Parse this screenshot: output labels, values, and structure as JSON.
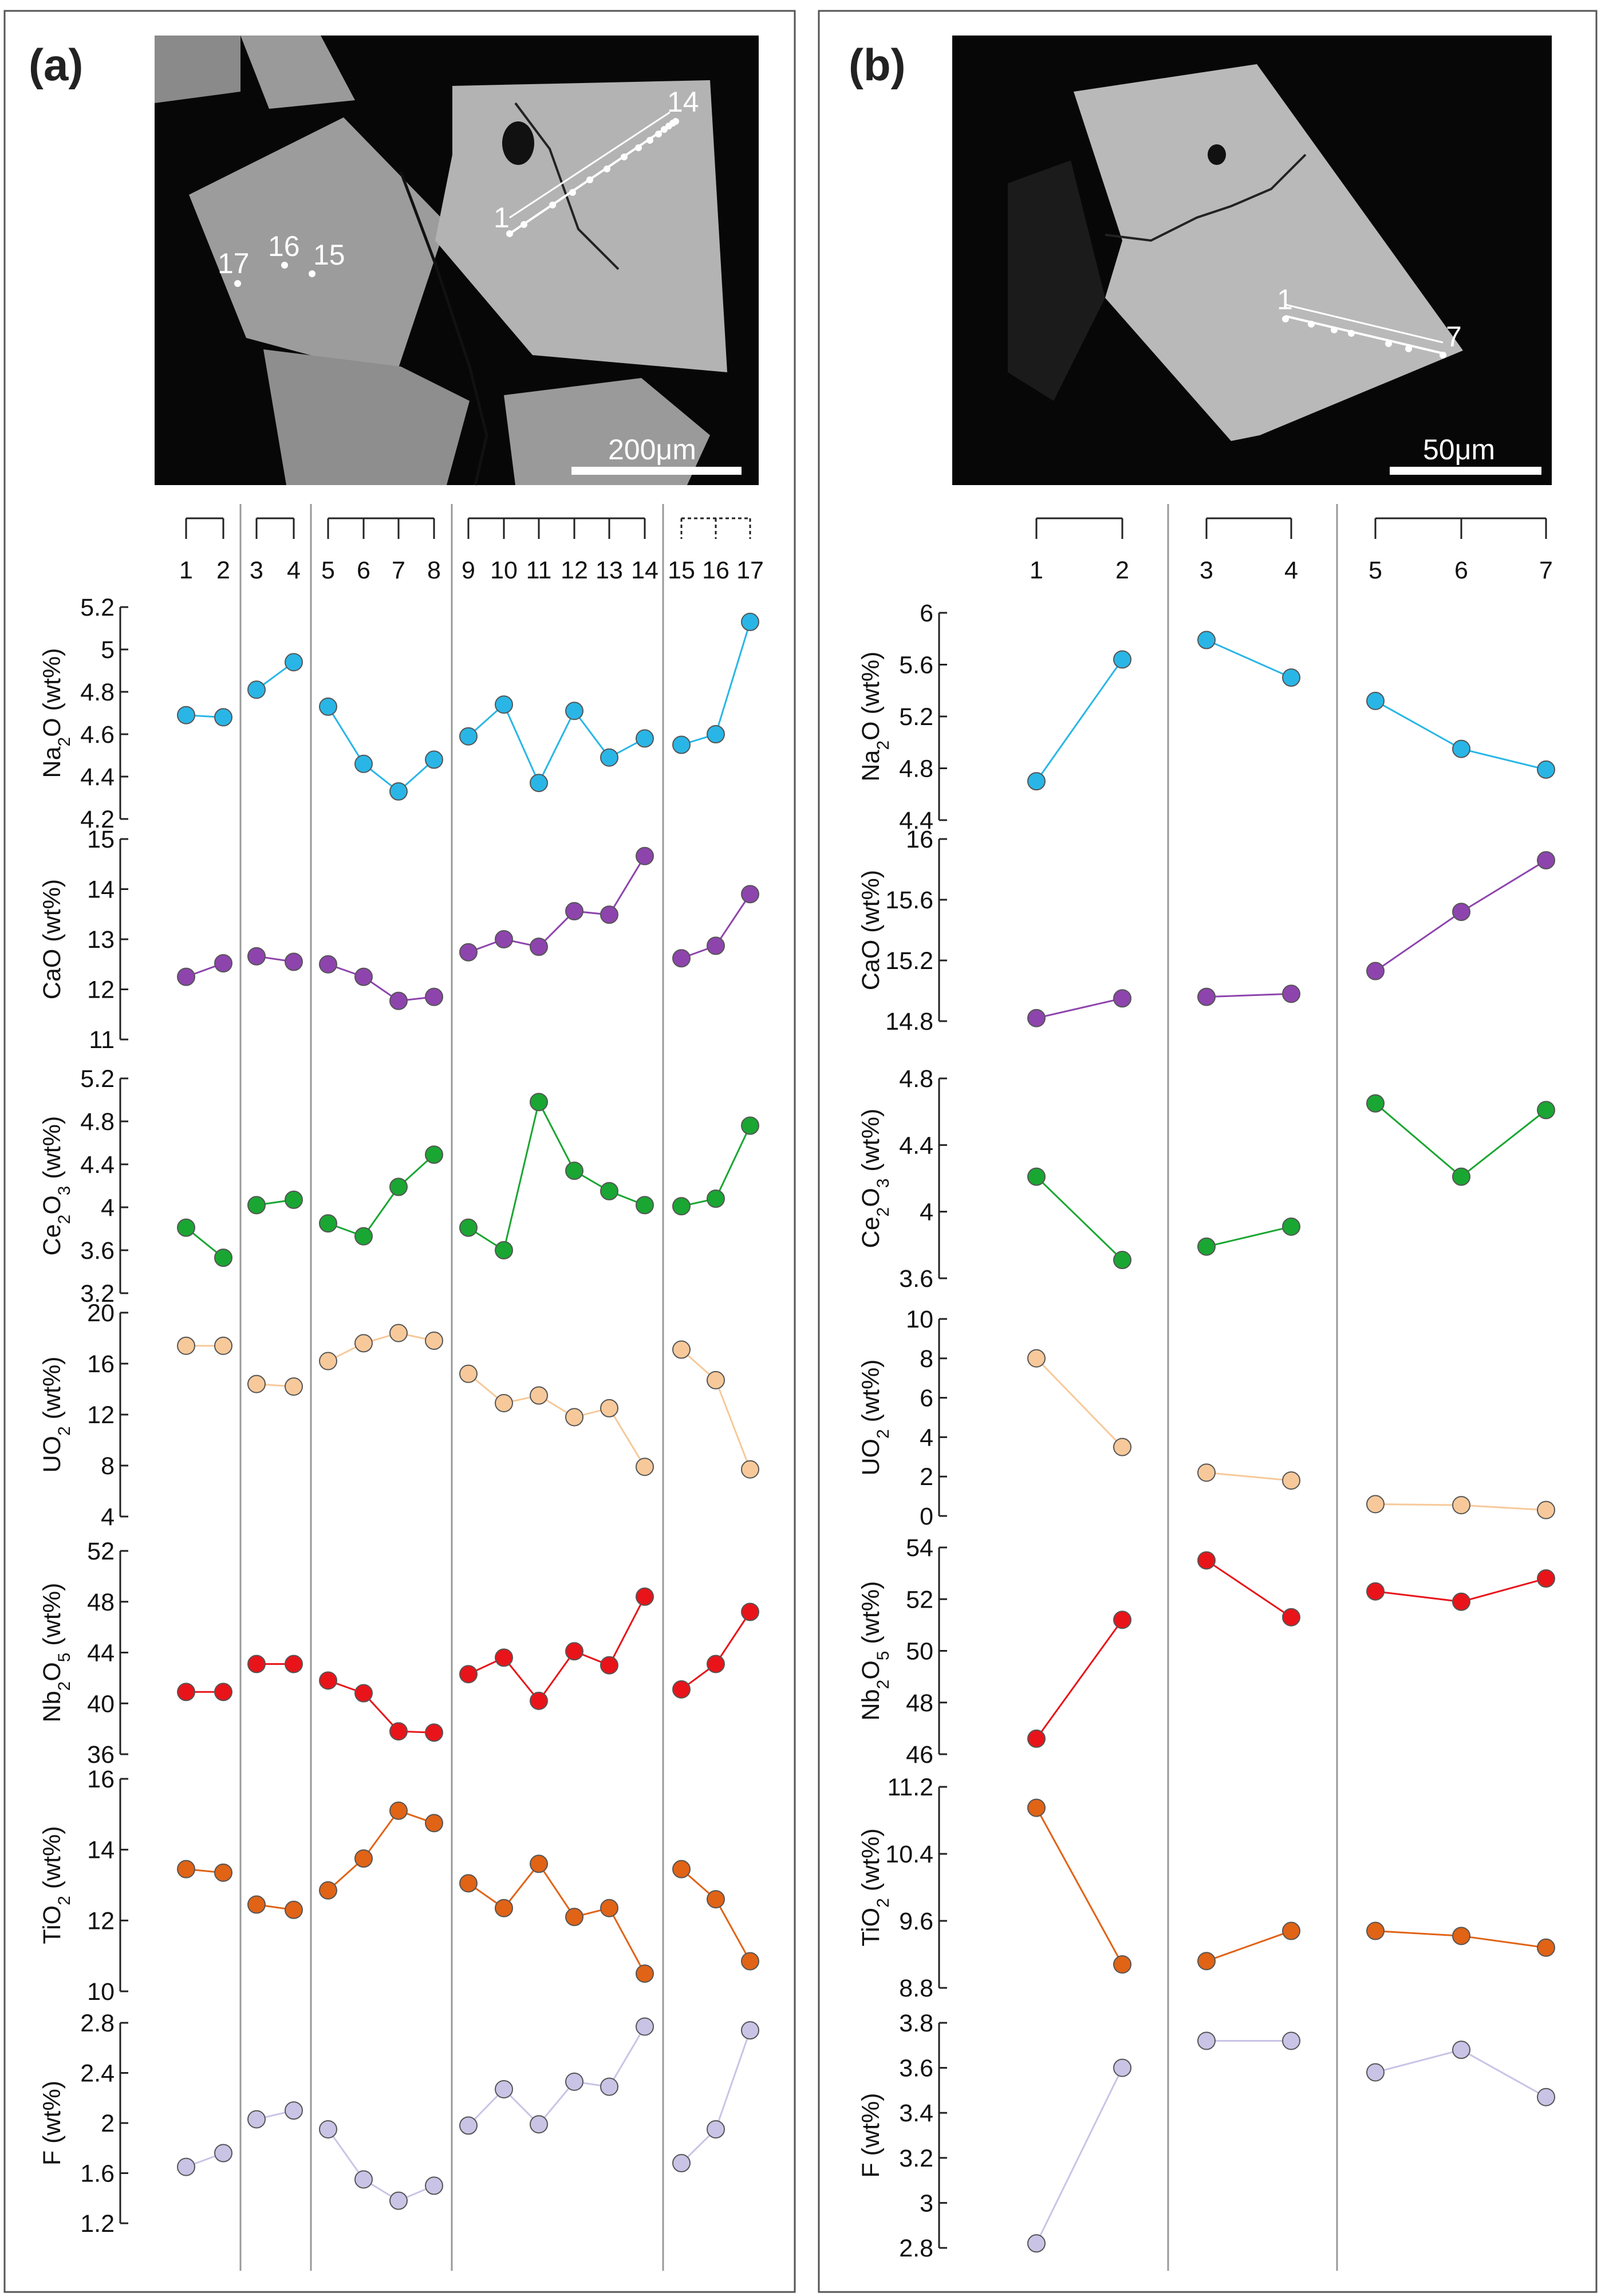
{
  "figure": {
    "panels": [
      {
        "label": "(a)",
        "scalebar_label": "200μm"
      },
      {
        "label": "(b)",
        "scalebar_label": "50μm"
      }
    ]
  },
  "chart_data": [
    {
      "panel": "(a)",
      "type": "line",
      "categories": [
        "1",
        "2",
        "3",
        "4",
        "5",
        "6",
        "7",
        "8",
        "9",
        "10",
        "11",
        "12",
        "13",
        "14",
        "15",
        "16",
        "17"
      ],
      "segments": [
        [
          1,
          2
        ],
        [
          3,
          4
        ],
        [
          5,
          8
        ],
        [
          9,
          14
        ],
        [
          15,
          17
        ]
      ],
      "image_point_labels": [
        "1",
        "14",
        "15",
        "16",
        "17"
      ],
      "series": [
        {
          "name": "Na2O (wt%)",
          "ylabel_main": "Na",
          "ylabel_sub": "2",
          "ylabel_rest": "O (wt%)",
          "color": "#29b6e6",
          "ylim": [
            4.2,
            5.2
          ],
          "yticks": [
            "4.2",
            "4.4",
            "4.6",
            "4.8",
            "5",
            "5.2"
          ],
          "values": [
            4.69,
            4.68,
            4.81,
            4.94,
            4.73,
            4.46,
            4.33,
            4.48,
            4.59,
            4.74,
            4.37,
            4.71,
            4.49,
            4.58,
            4.55,
            4.6,
            5.13
          ]
        },
        {
          "name": "CaO (wt%)",
          "ylabel_main": "CaO (wt%)",
          "ylabel_sub": "",
          "ylabel_rest": "",
          "color": "#8e44ad",
          "ylim": [
            11,
            15
          ],
          "yticks": [
            "11",
            "12",
            "13",
            "14",
            "15"
          ],
          "values": [
            12.25,
            12.52,
            12.66,
            12.55,
            12.5,
            12.25,
            11.77,
            11.85,
            12.74,
            13.0,
            12.85,
            13.56,
            13.49,
            14.66,
            12.62,
            12.87,
            13.9
          ]
        },
        {
          "name": "Ce2O3 (wt%)",
          "ylabel_main": "Ce",
          "ylabel_sub": "2",
          "ylabel_rest": "O",
          "ylabel_sub2": "3",
          "ylabel_rest2": " (wt%)",
          "color": "#1aa632",
          "ylim": [
            3.2,
            5.2
          ],
          "yticks": [
            "3.2",
            "3.6",
            "4",
            "4.4",
            "4.8",
            "5.2"
          ],
          "values": [
            3.81,
            3.53,
            4.02,
            4.07,
            3.85,
            3.73,
            4.19,
            4.49,
            3.81,
            3.6,
            4.98,
            4.34,
            4.15,
            4.02,
            4.01,
            4.08,
            4.76
          ]
        },
        {
          "name": "UO2 (wt%)",
          "ylabel_main": "UO",
          "ylabel_sub": "2",
          "ylabel_rest": " (wt%)",
          "color": "#f7c99a",
          "ylim": [
            4,
            20
          ],
          "yticks": [
            "4",
            "8",
            "12",
            "16",
            "20"
          ],
          "values": [
            17.4,
            17.4,
            14.4,
            14.2,
            16.2,
            17.6,
            18.4,
            17.8,
            15.2,
            12.9,
            13.5,
            11.8,
            12.5,
            7.9,
            17.1,
            14.7,
            7.7
          ]
        },
        {
          "name": "Nb2O5 (wt%)",
          "ylabel_main": "Nb",
          "ylabel_sub": "2",
          "ylabel_rest": "O",
          "ylabel_sub2": "5",
          "ylabel_rest2": " (wt%)",
          "color": "#e8141a",
          "ylim": [
            36,
            52
          ],
          "yticks": [
            "36",
            "40",
            "44",
            "48",
            "52"
          ],
          "values": [
            40.9,
            40.9,
            43.1,
            43.1,
            41.8,
            40.8,
            37.8,
            37.7,
            42.3,
            43.6,
            40.2,
            44.1,
            43.0,
            48.4,
            41.1,
            43.1,
            47.2
          ]
        },
        {
          "name": "TiO2 (wt%)",
          "ylabel_main": "TiO",
          "ylabel_sub": "2",
          "ylabel_rest": " (wt%)",
          "color": "#e06316",
          "ylim": [
            10,
            16
          ],
          "yticks": [
            "10",
            "12",
            "14",
            "16"
          ],
          "values": [
            13.45,
            13.35,
            12.45,
            12.3,
            12.85,
            13.75,
            15.1,
            14.75,
            13.05,
            12.35,
            13.6,
            12.1,
            12.35,
            10.5,
            13.45,
            12.6,
            10.85
          ]
        },
        {
          "name": "F (wt%)",
          "ylabel_main": "F (wt%)",
          "ylabel_sub": "",
          "ylabel_rest": "",
          "color": "#c9c4e6",
          "ylim": [
            1.2,
            2.8
          ],
          "yticks": [
            "1.2",
            "1.6",
            "2",
            "2.4",
            "2.8"
          ],
          "values": [
            1.65,
            1.76,
            2.03,
            2.1,
            1.95,
            1.55,
            1.38,
            1.5,
            1.98,
            2.27,
            1.99,
            2.33,
            2.29,
            2.77,
            1.68,
            1.95,
            2.74
          ]
        }
      ]
    },
    {
      "panel": "(b)",
      "type": "line",
      "categories": [
        "1",
        "2",
        "3",
        "4",
        "5",
        "6",
        "7"
      ],
      "segments": [
        [
          1,
          2
        ],
        [
          3,
          4
        ],
        [
          5,
          7
        ]
      ],
      "image_point_labels": [
        "1",
        "7"
      ],
      "series": [
        {
          "name": "Na2O (wt%)",
          "ylabel_main": "Na",
          "ylabel_sub": "2",
          "ylabel_rest": "O (wt%)",
          "color": "#29b6e6",
          "ylim": [
            4.4,
            6
          ],
          "yticks": [
            "4.4",
            "4.8",
            "5.2",
            "5.6",
            "6"
          ],
          "values": [
            4.7,
            5.64,
            5.79,
            5.5,
            5.32,
            4.95,
            4.79
          ]
        },
        {
          "name": "CaO (wt%)",
          "ylabel_main": "CaO (wt%)",
          "ylabel_sub": "",
          "ylabel_rest": "",
          "color": "#8e44ad",
          "ylim": [
            14.8,
            16
          ],
          "yticks": [
            "14.8",
            "15.2",
            "15.6",
            "16"
          ],
          "values": [
            14.82,
            14.95,
            14.96,
            14.98,
            15.13,
            15.52,
            15.86
          ]
        },
        {
          "name": "Ce2O3 (wt%)",
          "ylabel_main": "Ce",
          "ylabel_sub": "2",
          "ylabel_rest": "O",
          "ylabel_sub2": "3",
          "ylabel_rest2": " (wt%)",
          "color": "#1aa632",
          "ylim": [
            3.6,
            4.8
          ],
          "yticks": [
            "3.6",
            "4",
            "4.4",
            "4.8"
          ],
          "values": [
            4.21,
            3.71,
            3.79,
            3.91,
            4.65,
            4.21,
            4.61
          ]
        },
        {
          "name": "UO2 (wt%)",
          "ylabel_main": "UO",
          "ylabel_sub": "2",
          "ylabel_rest": " (wt%)",
          "color": "#f7c99a",
          "ylim": [
            0,
            10
          ],
          "yticks": [
            "0",
            "2",
            "4",
            "6",
            "8",
            "10"
          ],
          "values": [
            8.0,
            3.5,
            2.2,
            1.8,
            0.6,
            0.55,
            0.3
          ]
        },
        {
          "name": "Nb2O5 (wt%)",
          "ylabel_main": "Nb",
          "ylabel_sub": "2",
          "ylabel_rest": "O",
          "ylabel_sub2": "5",
          "ylabel_rest2": " (wt%)",
          "color": "#e8141a",
          "ylim": [
            46,
            54
          ],
          "yticks": [
            "46",
            "48",
            "50",
            "52",
            "54"
          ],
          "values": [
            46.6,
            51.2,
            53.5,
            51.3,
            52.3,
            51.9,
            52.8
          ]
        },
        {
          "name": "TiO2 (wt%)",
          "ylabel_main": "TiO",
          "ylabel_sub": "2",
          "ylabel_rest": " (wt%)",
          "color": "#e06316",
          "ylim": [
            8.8,
            11.2
          ],
          "yticks": [
            "8.8",
            "9.6",
            "10.4",
            "11.2"
          ],
          "values": [
            10.95,
            9.08,
            9.12,
            9.48,
            9.48,
            9.42,
            9.28
          ]
        },
        {
          "name": "F (wt%)",
          "ylabel_main": "F (wt%)",
          "ylabel_sub": "",
          "ylabel_rest": "",
          "color": "#c9c4e6",
          "ylim": [
            2.8,
            3.8
          ],
          "yticks": [
            "2.8",
            "3",
            "3.2",
            "3.4",
            "3.6",
            "3.8"
          ],
          "values": [
            2.82,
            3.6,
            3.72,
            3.72,
            3.58,
            3.68,
            3.47
          ]
        }
      ]
    }
  ]
}
